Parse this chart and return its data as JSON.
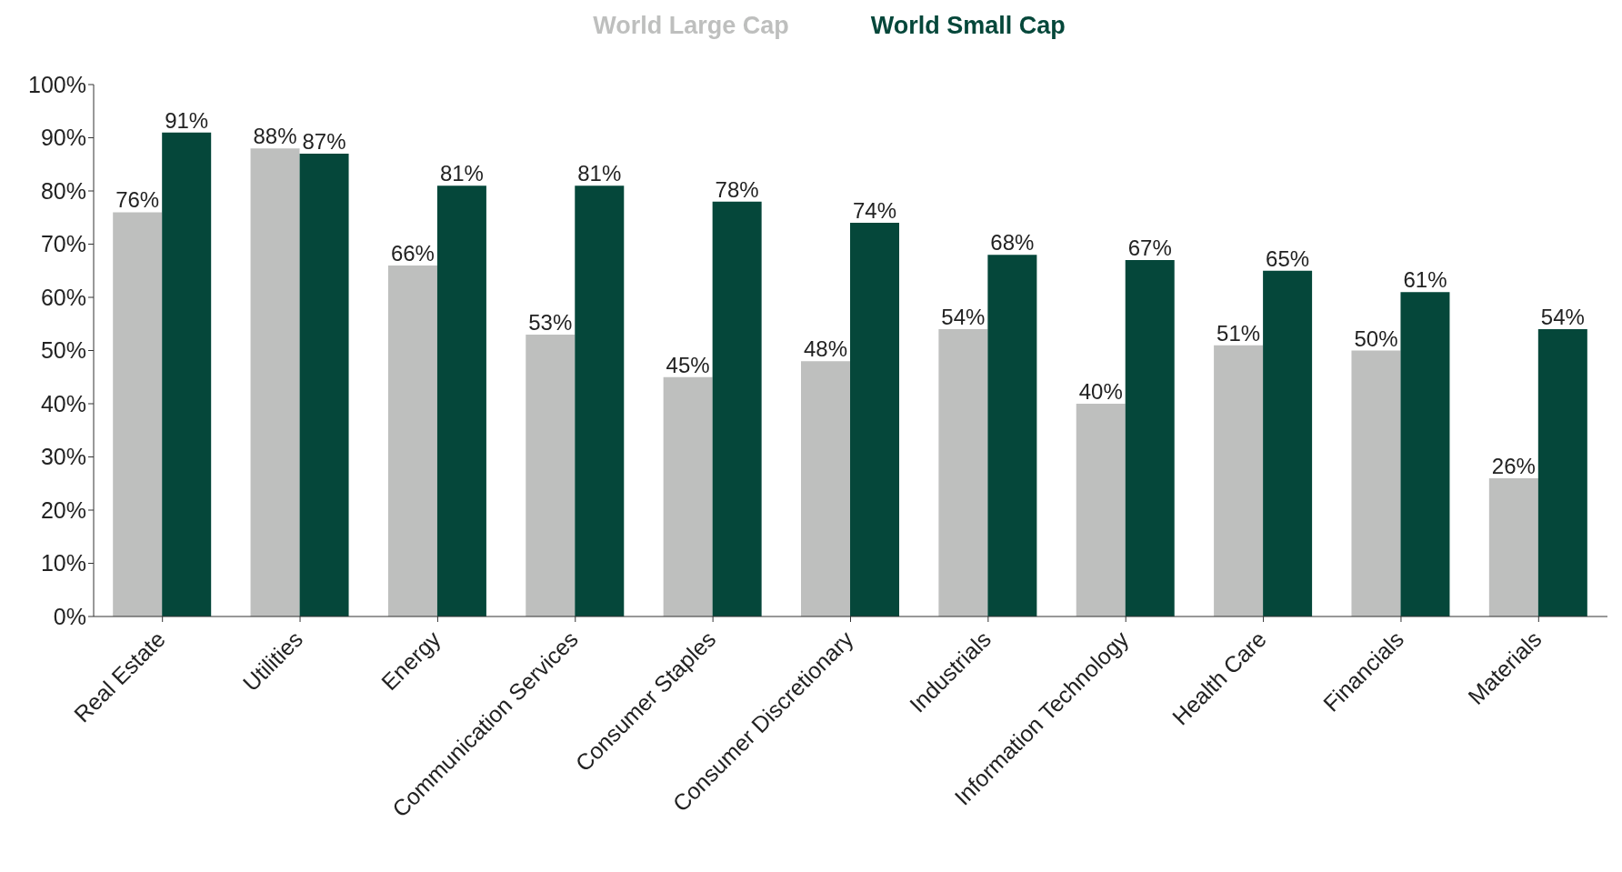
{
  "chart_data": {
    "type": "bar",
    "categories": [
      "Real Estate",
      "Utilities",
      "Energy",
      "Communication Services",
      "Consumer Staples",
      "Consumer Discretionary",
      "Industrials",
      "Information Technology",
      "Health Care",
      "Financials",
      "Materials"
    ],
    "series": [
      {
        "name": "World Large Cap",
        "color": "#bebfbe",
        "values": [
          76,
          88,
          66,
          53,
          45,
          48,
          54,
          40,
          51,
          50,
          26
        ],
        "value_labels": [
          "76%",
          "88%",
          "66%",
          "53%",
          "45%",
          "48%",
          "54%",
          "40%",
          "51%",
          "50%",
          "26%"
        ]
      },
      {
        "name": "World Small Cap",
        "color": "#05473a",
        "values": [
          91,
          87,
          81,
          81,
          78,
          74,
          68,
          67,
          65,
          61,
          54
        ],
        "value_labels": [
          "91%",
          "87%",
          "81%",
          "81%",
          "78%",
          "74%",
          "68%",
          "67%",
          "65%",
          "61%",
          "54%"
        ]
      }
    ],
    "ylim": [
      0,
      100
    ],
    "yticks": [
      {
        "value": 0,
        "label": "0%"
      },
      {
        "value": 10,
        "label": "10%"
      },
      {
        "value": 20,
        "label": "20%"
      },
      {
        "value": 30,
        "label": "30%"
      },
      {
        "value": 40,
        "label": "40%"
      },
      {
        "value": 50,
        "label": "50%"
      },
      {
        "value": 60,
        "label": "60%"
      },
      {
        "value": 70,
        "label": "70%"
      },
      {
        "value": 80,
        "label": "80%"
      },
      {
        "value": 90,
        "label": "90%"
      },
      {
        "value": 100,
        "label": "100%"
      }
    ],
    "grid": false,
    "legend": "top"
  }
}
